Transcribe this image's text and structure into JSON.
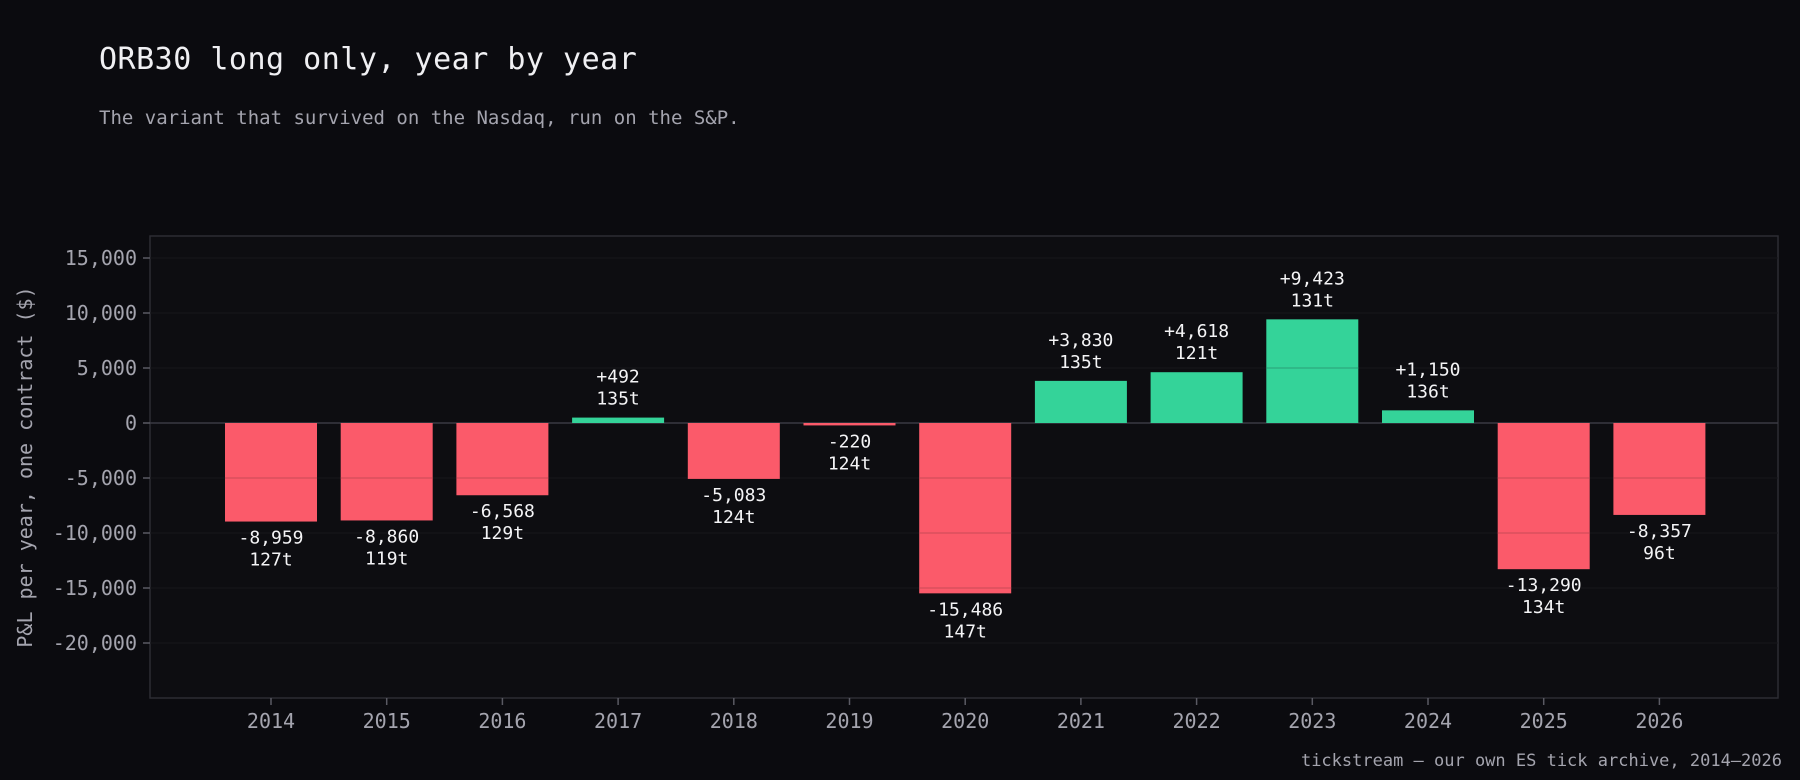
{
  "header": {
    "title": "ORB30 long only, year by year",
    "subtitle": "The variant that survived on the Nasdaq, run on the S&P."
  },
  "footer": {
    "source": "tickstream — our own ES tick archive, 2014–2026"
  },
  "colors": {
    "background": "#0b0b0f",
    "plot_background": "#0c0c10",
    "positive": "#34d399",
    "negative": "#fb5a6a",
    "text": "#f4f4f6",
    "muted": "#a4a4ae"
  },
  "chart_data": {
    "type": "bar",
    "title": "ORB30 long only, year by year",
    "subtitle": "The variant that survived on the Nasdaq, run on the S&P.",
    "xlabel": "",
    "ylabel": "P&L per year, one contract ($)",
    "categories": [
      "2014",
      "2015",
      "2016",
      "2017",
      "2018",
      "2019",
      "2020",
      "2021",
      "2022",
      "2023",
      "2024",
      "2025",
      "2026"
    ],
    "values": [
      -8959,
      -8860,
      -6568,
      492,
      -5083,
      -220,
      -15486,
      3830,
      4618,
      9423,
      1150,
      -13290,
      -8357
    ],
    "value_labels": [
      "-8,959",
      "-8,860",
      "-6,568",
      "+492",
      "-5,083",
      "-220",
      "-15,486",
      "+3,830",
      "+4,618",
      "+9,423",
      "+1,150",
      "-13,290",
      "-8,357"
    ],
    "trade_counts": [
      "127t",
      "119t",
      "129t",
      "135t",
      "124t",
      "124t",
      "147t",
      "135t",
      "121t",
      "131t",
      "136t",
      "134t",
      "96t"
    ],
    "yticks": [
      15000,
      10000,
      5000,
      0,
      -5000,
      -10000,
      -15000,
      -20000
    ],
    "ytick_labels": [
      "15,000",
      "10,000",
      "5,000",
      "0",
      "-5,000",
      "-10,000",
      "-15,000",
      "-20,000"
    ],
    "ylim": [
      -25000,
      17000
    ],
    "grid": true,
    "legend": "none"
  }
}
